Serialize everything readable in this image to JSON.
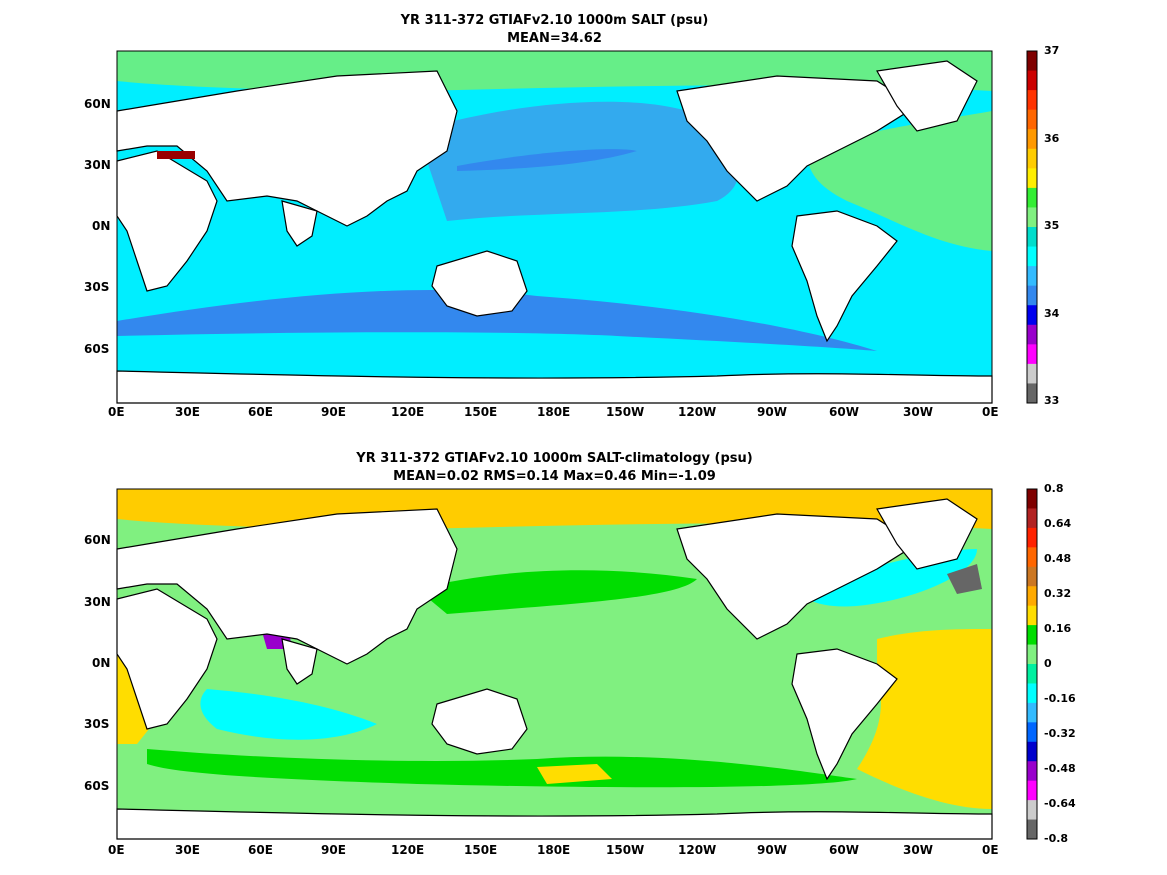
{
  "panels": [
    {
      "title_line1": "YR 311-372 GTIAFv2.10 1000m SALT (psu)",
      "title_line2": "MEAN=34.62",
      "colorbar": {
        "ticks": [
          "37",
          "36",
          "35",
          "34",
          "33"
        ],
        "colors": [
          "#7f0000",
          "#cc0000",
          "#ff3300",
          "#ff6600",
          "#ff9900",
          "#ffcc00",
          "#ffee00",
          "#33ee33",
          "#80f080",
          "#00ddcc",
          "#00ffff",
          "#33bbff",
          "#3388ee",
          "#0000ee",
          "#9900cc",
          "#ff00ff",
          "#cccccc",
          "#666666"
        ]
      }
    },
    {
      "title_line1": "YR 311-372 GTIAFv2.10 1000m SALT-climatology (psu)",
      "title_line2": "MEAN=0.02   RMS=0.14   Max=0.46   Min=-1.09",
      "colorbar": {
        "ticks": [
          "0.8",
          "0.64",
          "0.48",
          "0.32",
          "0.16",
          "0",
          "-0.16",
          "-0.32",
          "-0.48",
          "-0.64",
          "-0.8"
        ],
        "colors": [
          "#7f0000",
          "#b22222",
          "#ff2200",
          "#ff6600",
          "#cc7722",
          "#ffaa00",
          "#ffdd00",
          "#00dd00",
          "#80f080",
          "#00f0a0",
          "#00ffff",
          "#33bbff",
          "#0066ff",
          "#0000cc",
          "#9900cc",
          "#ff00ff",
          "#cccccc",
          "#666666"
        ]
      }
    }
  ],
  "x_tick_labels": [
    "0E",
    "30E",
    "60E",
    "90E",
    "120E",
    "150E",
    "180E",
    "150W",
    "120W",
    "90W",
    "60W",
    "30W",
    "0E"
  ],
  "y_tick_labels": [
    "60N",
    "30N",
    "0N",
    "30S",
    "60S"
  ],
  "map_colors": {
    "land": "#ffffff",
    "coast": "#000000",
    "panel1_ocean_base": "#00eeff",
    "panel1_north_pacific": "#33aaee",
    "panel1_south_band": "#3388ee",
    "panel1_atlantic": "#66ee88",
    "panel1_mediterranean": "#990000",
    "panel2_ocean_base": "#80f080",
    "panel2_arctic": "#ffcc00",
    "panel2_atlantic": "#ffdd00",
    "panel2_neg": "#00ffff",
    "panel2_gulfstream": "#666666"
  }
}
